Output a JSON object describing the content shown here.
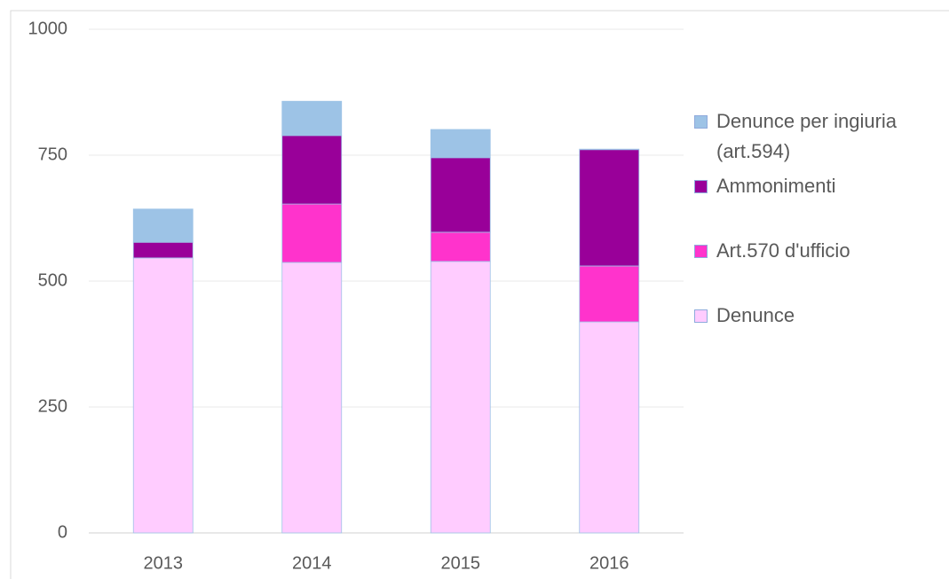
{
  "chart_data": {
    "type": "stacked-bar",
    "categories": [
      "2013",
      "2014",
      "2015",
      "2016"
    ],
    "series": [
      {
        "name": "Denunce",
        "color": "#ffccff",
        "values": [
          546,
          537,
          539,
          419
        ]
      },
      {
        "name": "Art.570 d'ufficio",
        "color": "#ff33cc",
        "values": [
          0,
          116,
          58,
          111
        ]
      },
      {
        "name": "Ammonimenti",
        "color": "#990099",
        "values": [
          31,
          136,
          148,
          231
        ]
      },
      {
        "name": "Denunce per ingiuria (art.594)",
        "color": "#9dc3e6",
        "values": [
          66,
          68,
          56,
          1
        ]
      }
    ],
    "ylim": [
      0,
      1000
    ],
    "yticks": [
      0,
      250,
      500,
      750,
      1000
    ],
    "grid": true
  }
}
